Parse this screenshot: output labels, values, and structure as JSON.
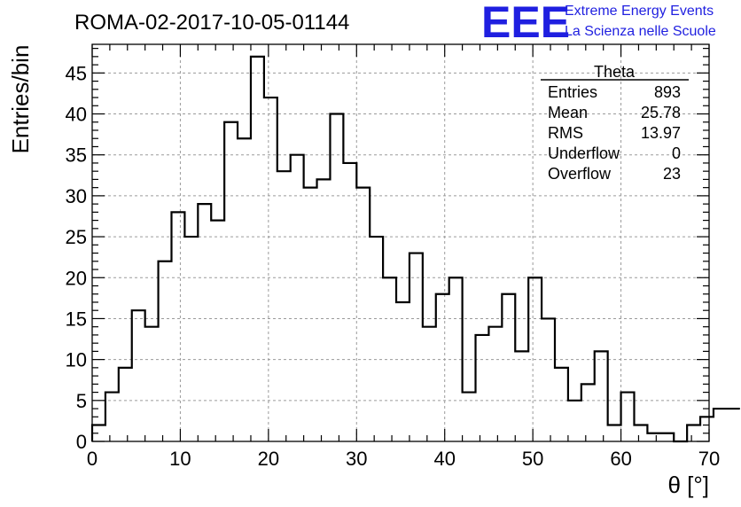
{
  "chart_data": {
    "type": "histogram",
    "title": "ROMA-02-2017-10-05-01144",
    "xlabel": "θ [°]",
    "ylabel": "Entries/bin",
    "xlim": [
      0,
      70
    ],
    "ylim": [
      0,
      48.5
    ],
    "x_ticks": [
      0,
      10,
      20,
      30,
      40,
      50,
      60,
      70
    ],
    "y_ticks": [
      0,
      5,
      10,
      15,
      20,
      25,
      30,
      35,
      40,
      45
    ],
    "bin_width": 1.5,
    "bin_start": 0,
    "values": [
      2,
      6,
      9,
      16,
      14,
      22,
      28,
      25,
      29,
      27,
      39,
      37,
      47,
      42,
      33,
      35,
      31,
      32,
      40,
      34,
      31,
      25,
      20,
      17,
      23,
      14,
      18,
      20,
      6,
      13,
      14,
      18,
      11,
      20,
      15,
      9,
      5,
      7,
      11,
      2,
      6,
      2,
      1,
      1,
      0,
      2,
      3,
      4,
      4
    ],
    "grid": true,
    "legend": "top-right"
  },
  "logo": {
    "text": "EEE",
    "line1": "Extreme Energy Events",
    "line2": "La Scienza nelle Scuole"
  },
  "stats": {
    "title": "Theta",
    "rows": [
      {
        "label": "Entries",
        "value": "893"
      },
      {
        "label": "Mean",
        "value": "25.78"
      },
      {
        "label": "RMS",
        "value": "13.97"
      },
      {
        "label": "Underflow",
        "value": "0"
      },
      {
        "label": "Overflow",
        "value": "23"
      }
    ]
  }
}
